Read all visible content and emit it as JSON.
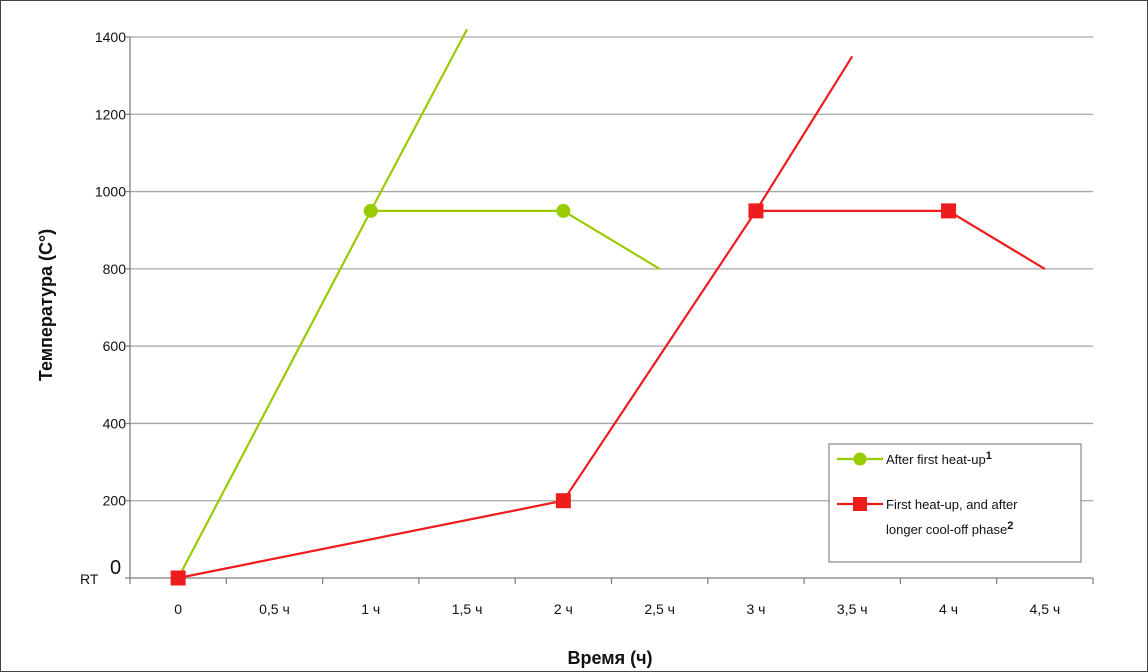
{
  "chart_data": {
    "type": "line",
    "xlabel": "Время (ч)",
    "ylabel": "Температура (C°)",
    "xlim": [
      -0.25,
      4.75
    ],
    "ylim": [
      0,
      1400
    ],
    "x_ticks": [
      {
        "value": 0,
        "label": "0"
      },
      {
        "value": 0.5,
        "label": "0,5 ч"
      },
      {
        "value": 1,
        "label": "1 ч"
      },
      {
        "value": 1.5,
        "label": "1,5 ч"
      },
      {
        "value": 2,
        "label": "2 ч"
      },
      {
        "value": 2.5,
        "label": "2,5 ч"
      },
      {
        "value": 3,
        "label": "3 ч"
      },
      {
        "value": 3.5,
        "label": "3,5 ч"
      },
      {
        "value": 4,
        "label": "4 ч"
      },
      {
        "value": 4.5,
        "label": "4,5 ч"
      }
    ],
    "y_ticks": [
      {
        "value": 200,
        "label": "200"
      },
      {
        "value": 400,
        "label": "400"
      },
      {
        "value": 600,
        "label": "600"
      },
      {
        "value": 800,
        "label": "800"
      },
      {
        "value": 1000,
        "label": "1000"
      },
      {
        "value": 1200,
        "label": "1200"
      },
      {
        "value": 1400,
        "label": "1400"
      }
    ],
    "y_origin_labels": {
      "rt": "RT",
      "zero": "0"
    },
    "grid": true,
    "legend_position": "bottom-right",
    "series": [
      {
        "id": "green",
        "legend": [
          "After first heat-up"
        ],
        "legend_sup": "1",
        "color": "#99cc00",
        "marker": "circle",
        "points": [
          {
            "x": 0,
            "y": 0,
            "marker": false
          },
          {
            "x": 1,
            "y": 950,
            "marker": true
          },
          {
            "x": 2,
            "y": 950,
            "marker": true
          },
          {
            "x": 2.5,
            "y": 800,
            "marker": false
          }
        ],
        "extra_segments": [
          {
            "from": {
              "x": 1,
              "y": 950
            },
            "to": {
              "x": 1.5,
              "y": 1420
            }
          }
        ]
      },
      {
        "id": "red",
        "legend": [
          "First heat-up,  and after",
          "longer cool-off phase"
        ],
        "legend_sup": "2",
        "color": "#ee1c1c",
        "marker": "square",
        "points": [
          {
            "x": 0,
            "y": 0,
            "marker": true
          },
          {
            "x": 2,
            "y": 200,
            "marker": true
          },
          {
            "x": 3,
            "y": 950,
            "marker": true
          },
          {
            "x": 4,
            "y": 950,
            "marker": true
          },
          {
            "x": 4.5,
            "y": 800,
            "marker": false
          }
        ],
        "extra_segments": [
          {
            "from": {
              "x": 3,
              "y": 950
            },
            "to": {
              "x": 3.5,
              "y": 1350
            }
          }
        ]
      }
    ]
  }
}
